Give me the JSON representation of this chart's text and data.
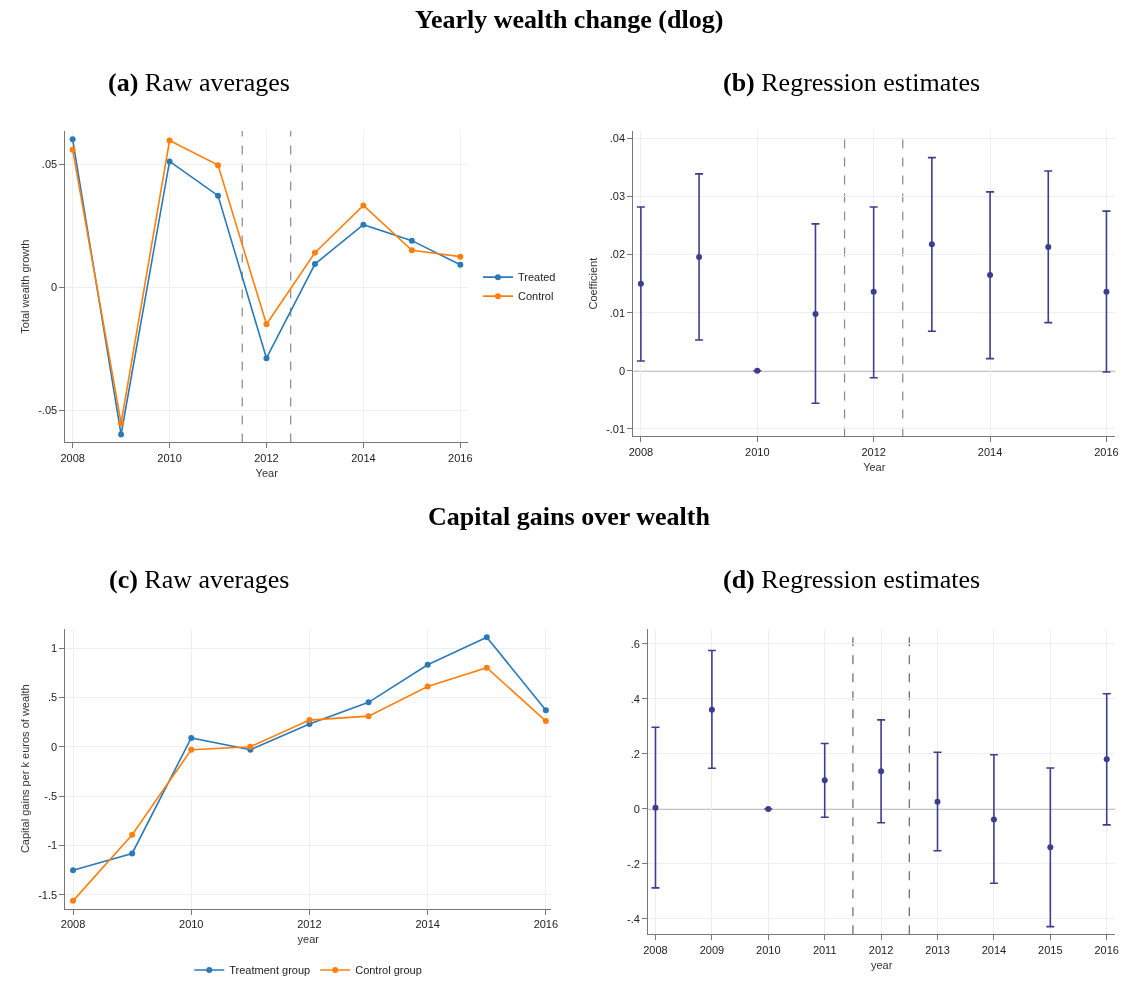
{
  "chart_data": [
    {
      "type": "line",
      "title": "(a) Raw averages",
      "annotations": [
        "Yearly wealth change (dlog)"
      ],
      "xlabel": "Year",
      "ylabel": "Total wealth growth",
      "x": [
        2008,
        2009,
        2010,
        2011,
        2012,
        2013,
        2014,
        2015,
        2016
      ],
      "series": [
        {
          "name": "Treated",
          "color": "#2a7ab8",
          "values": [
            0.0602,
            -0.0598,
            0.0512,
            0.0373,
            -0.0288,
            0.0095,
            0.0255,
            0.019,
            0.0092
          ]
        },
        {
          "name": "Control",
          "color": "#ff7f0e",
          "values": [
            0.056,
            -0.0552,
            0.0597,
            0.0497,
            -0.015,
            0.0141,
            0.0333,
            0.0151,
            0.0125
          ]
        }
      ],
      "xlim": [
        2007.85,
        2016.16
      ],
      "ylim": [
        -0.063,
        0.0636
      ],
      "xticks": [
        2008,
        2010,
        2012,
        2014,
        2016
      ],
      "yticks": [
        {
          "value": -0.05,
          "label": "-.05"
        },
        0,
        {
          "value": 0.05,
          "label": ".05"
        }
      ],
      "ref_lines": [
        {
          "axis": "x",
          "value": 2011.5,
          "color": "#888888",
          "line_style": "dashed"
        },
        {
          "axis": "x",
          "value": 2012.5,
          "color": "#888888",
          "line_style": "dashed"
        }
      ],
      "grid": true,
      "legend": "right",
      "marker": "circle"
    },
    {
      "type": "scatter",
      "title": "(b) Regression estimates",
      "xlabel": "Year",
      "ylabel": "Coefficient",
      "x": [
        2008,
        2009,
        2010,
        2011,
        2012,
        2013,
        2014,
        2015,
        2016
      ],
      "series": [
        {
          "color": "#3d3d8f",
          "values": [
            0.015,
            0.0196,
            0,
            0.0098,
            0.0136,
            0.0218,
            0.0165,
            0.0213,
            0.0136
          ],
          "errors": [
            [
              0.0017,
              0.0282
            ],
            [
              0.0053,
              0.0339
            ],
            null,
            [
              -0.0056,
              0.0253
            ],
            [
              -0.0012,
              0.0282
            ],
            [
              0.0068,
              0.0367
            ],
            [
              0.0021,
              0.0308
            ],
            [
              0.0083,
              0.0344
            ],
            [
              -0.0002,
              0.0275
            ]
          ]
        }
      ],
      "xlim": [
        2007.87,
        2016.15
      ],
      "ylim": [
        -0.0113,
        0.0413
      ],
      "xticks": [
        2008,
        2010,
        2012,
        2014,
        2016
      ],
      "yticks": [
        {
          "value": -0.01,
          "label": "-.01"
        },
        0,
        {
          "value": 0.01,
          "label": ".01"
        },
        {
          "value": 0.02,
          "label": ".02"
        },
        {
          "value": 0.03,
          "label": ".03"
        },
        {
          "value": 0.04,
          "label": ".04"
        }
      ],
      "ref_lines": [
        {
          "axis": "x",
          "value": 2011.5,
          "color": "#888888",
          "line_style": "dashed"
        },
        {
          "axis": "x",
          "value": 2012.5,
          "color": "#888888",
          "line_style": "dashed"
        },
        {
          "axis": "y",
          "value": 0,
          "color": "#888888",
          "line_style": "solid"
        }
      ],
      "grid": true,
      "marker": "circle"
    },
    {
      "type": "line",
      "title": "(c) Raw averages",
      "annotations": [
        "Capital gains over wealth"
      ],
      "xlabel": "year",
      "ylabel": "Capital gains per k euros of wealth",
      "x": [
        2008,
        2009,
        2010,
        2011,
        2012,
        2013,
        2014,
        2015,
        2016
      ],
      "series": [
        {
          "name": "Treatment group",
          "color": "#2a7ab8",
          "values": [
            -1.25,
            -1.08,
            0.09,
            -0.03,
            0.23,
            0.45,
            0.83,
            1.11,
            0.37
          ]
        },
        {
          "name": "Control group",
          "color": "#ff7f0e",
          "values": [
            -1.56,
            -0.89,
            -0.03,
            0.0,
            0.27,
            0.31,
            0.61,
            0.8,
            0.26
          ]
        }
      ],
      "xlim": [
        2007.87,
        2016.09
      ],
      "ylim": [
        -1.638,
        1.194
      ],
      "xticks": [
        2008,
        2010,
        2012,
        2014,
        2016
      ],
      "yticks": [
        {
          "value": -1.5,
          "label": "-1.5"
        },
        -1,
        {
          "value": -0.5,
          "label": "-.5"
        },
        0,
        {
          "value": 0.5,
          "label": ".5"
        },
        1
      ],
      "grid": true,
      "legend": "bottom",
      "marker": "circle"
    },
    {
      "type": "scatter",
      "title": "(d) Regression estimates",
      "xlabel": "year",
      "x": [
        2008,
        2009,
        2010,
        2011,
        2012,
        2013,
        2014,
        2015,
        2016
      ],
      "series": [
        {
          "color": "#3d3d8f",
          "values": [
            0.004,
            0.361,
            0,
            0.104,
            0.137,
            0.026,
            -0.038,
            -0.139,
            0.181
          ],
          "errors": [
            [
              -0.287,
              0.297
            ],
            [
              0.148,
              0.576
            ],
            null,
            [
              -0.03,
              0.238
            ],
            [
              -0.05,
              0.324
            ],
            [
              -0.152,
              0.206
            ],
            [
              -0.27,
              0.197
            ],
            [
              -0.428,
              0.149
            ],
            [
              -0.058,
              0.419
            ]
          ]
        }
      ],
      "xlim": [
        2007.87,
        2016.15
      ],
      "ylim": [
        -0.456,
        0.655
      ],
      "xticks": [
        2008,
        2009,
        2010,
        2011,
        2012,
        2013,
        2014,
        2015,
        2016
      ],
      "yticks": [
        {
          "value": -0.4,
          "label": "-.4"
        },
        {
          "value": -0.2,
          "label": "-.2"
        },
        0,
        {
          "value": 0.2,
          "label": ".2"
        },
        {
          "value": 0.4,
          "label": ".4"
        },
        {
          "value": 0.6,
          "label": ".6"
        }
      ],
      "ref_lines": [
        {
          "axis": "x",
          "value": 2011.5,
          "color": "#666666",
          "line_style": "dashed"
        },
        {
          "axis": "x",
          "value": 2012.5,
          "color": "#666666",
          "line_style": "dashed"
        },
        {
          "axis": "y",
          "value": 0,
          "color": "#888888",
          "line_style": "solid"
        }
      ],
      "grid": true,
      "marker": "circle"
    }
  ]
}
